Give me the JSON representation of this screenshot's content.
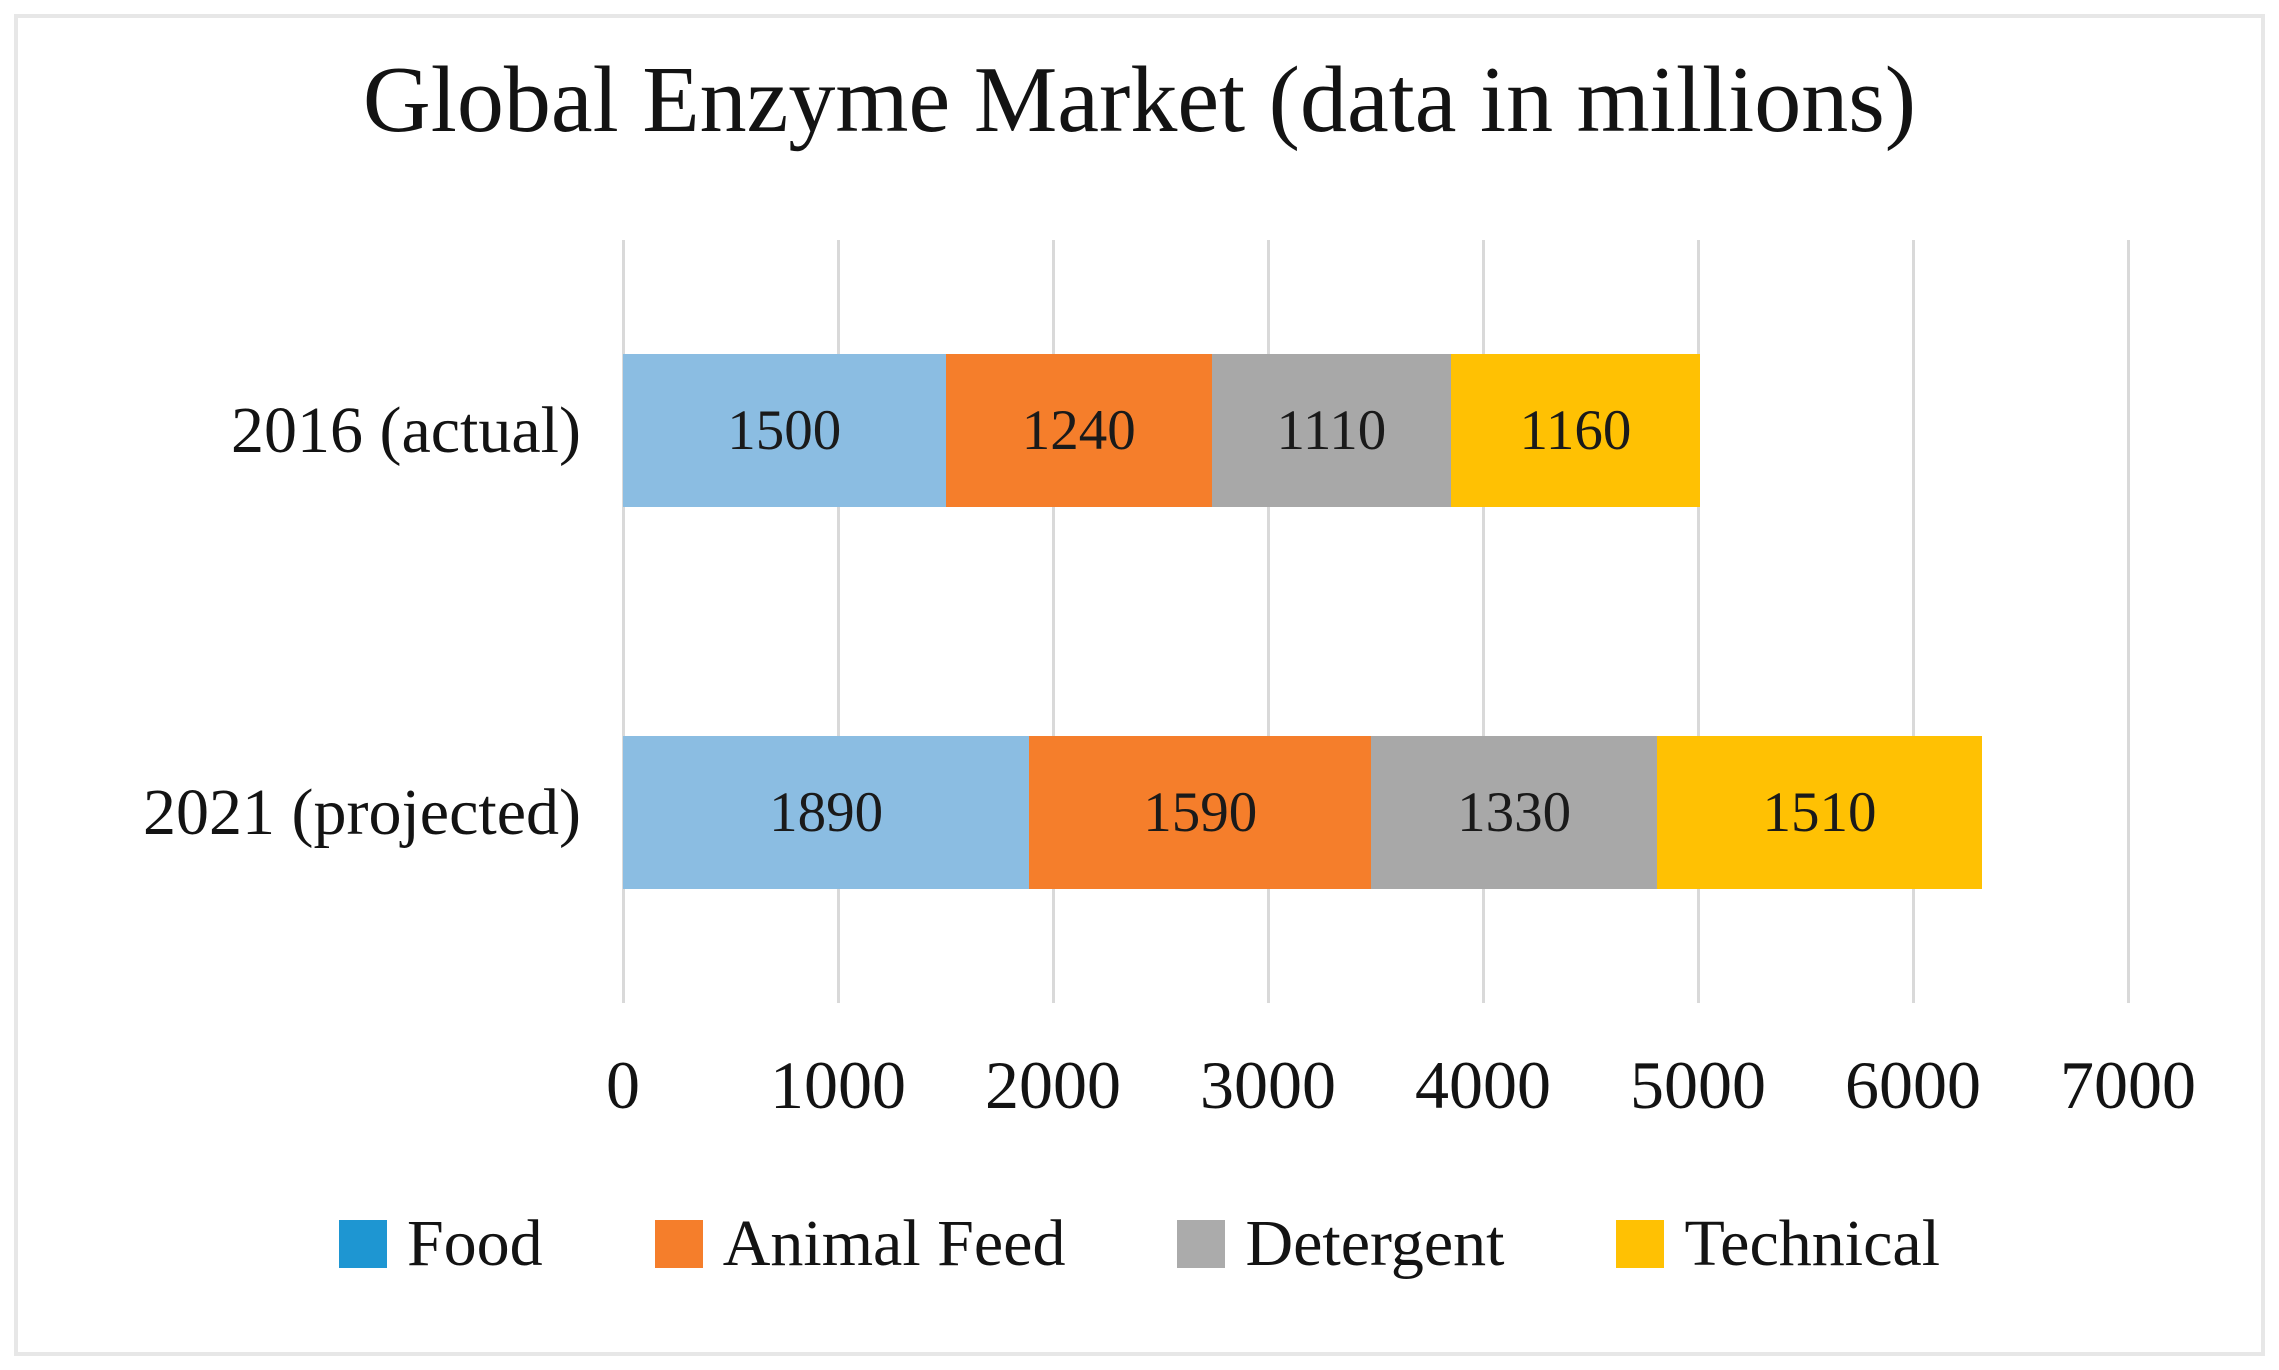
{
  "chart_data": {
    "type": "bar",
    "orientation": "horizontal",
    "stacked": true,
    "title": "Global Enzyme Market (data in millions)",
    "categories": [
      "2016 (actual)",
      "2021 (projected)"
    ],
    "series": [
      {
        "name": "Food",
        "values": [
          1500,
          1890
        ],
        "bar_color": "#8bbde2",
        "legend_color": "#1e96d2"
      },
      {
        "name": "Animal Feed",
        "values": [
          1240,
          1590
        ],
        "bar_color": "#f57e2b",
        "legend_color": "#f57e2b"
      },
      {
        "name": "Detergent",
        "values": [
          1110,
          1330
        ],
        "bar_color": "#a8a8a8",
        "legend_color": "#ababab"
      },
      {
        "name": "Technical",
        "values": [
          1160,
          1510
        ],
        "bar_color": "#ffc103",
        "legend_color": "#ffc103"
      }
    ],
    "x_ticks": [
      "0",
      "1000",
      "2000",
      "3000",
      "4000",
      "5000",
      "6000",
      "7000"
    ],
    "xlim": [
      0,
      7000
    ],
    "grid": true,
    "gridline_color": "#d9d9d9",
    "legend_position": "bottom",
    "category_totals": [
      5010,
      6320
    ]
  }
}
